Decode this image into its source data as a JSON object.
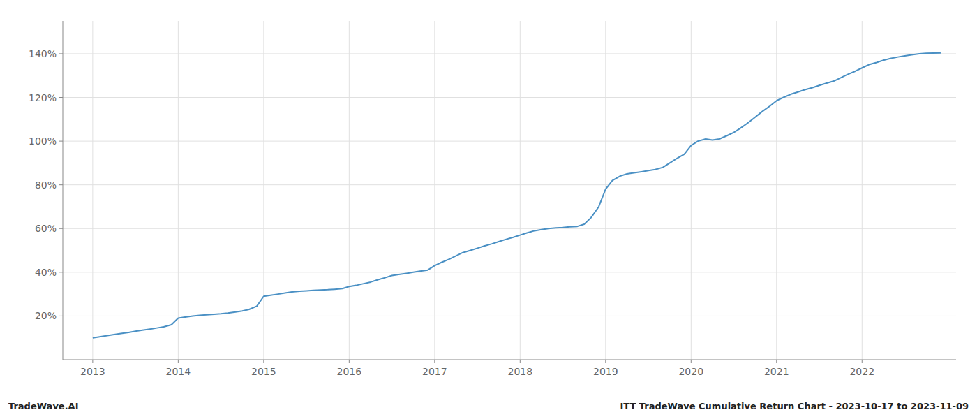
{
  "chart_data": {
    "type": "line",
    "title": "ITT TradeWave Cumulative Return Chart - 2023-10-17 to 2023-11-09",
    "subtitle": "TradeWave.AI",
    "color": "#4a90c4",
    "grid": true,
    "xlim": [
      2012.65,
      2023.1
    ],
    "xticks": [
      2013,
      2014,
      2015,
      2016,
      2017,
      2018,
      2019,
      2020,
      2021,
      2022
    ],
    "ylim": [
      0,
      155
    ],
    "yticks": [
      {
        "value": 20,
        "label": "20%"
      },
      {
        "value": 40,
        "label": "40%"
      },
      {
        "value": 60,
        "label": "60%"
      },
      {
        "value": 80,
        "label": "80%"
      },
      {
        "value": 100,
        "label": "100%"
      },
      {
        "value": 120,
        "label": "120%"
      },
      {
        "value": 140,
        "label": "140%"
      }
    ],
    "x": [
      2013.0,
      2013.08,
      2013.17,
      2013.25,
      2013.33,
      2013.42,
      2013.5,
      2013.58,
      2013.67,
      2013.75,
      2013.83,
      2013.92,
      2014.0,
      2014.08,
      2014.17,
      2014.25,
      2014.33,
      2014.42,
      2014.5,
      2014.58,
      2014.67,
      2014.75,
      2014.83,
      2014.92,
      2015.0,
      2015.08,
      2015.17,
      2015.25,
      2015.33,
      2015.42,
      2015.5,
      2015.58,
      2015.67,
      2015.75,
      2015.83,
      2015.92,
      2016.0,
      2016.08,
      2016.17,
      2016.25,
      2016.33,
      2016.42,
      2016.5,
      2016.58,
      2016.67,
      2016.75,
      2016.83,
      2016.92,
      2017.0,
      2017.08,
      2017.17,
      2017.25,
      2017.33,
      2017.42,
      2017.5,
      2017.58,
      2017.67,
      2017.75,
      2017.83,
      2017.92,
      2018.0,
      2018.08,
      2018.17,
      2018.25,
      2018.33,
      2018.42,
      2018.5,
      2018.58,
      2018.67,
      2018.75,
      2018.83,
      2018.92,
      2019.0,
      2019.08,
      2019.17,
      2019.25,
      2019.33,
      2019.42,
      2019.5,
      2019.58,
      2019.67,
      2019.75,
      2019.83,
      2019.92,
      2020.0,
      2020.08,
      2020.17,
      2020.25,
      2020.33,
      2020.42,
      2020.5,
      2020.58,
      2020.67,
      2020.75,
      2020.83,
      2020.92,
      2021.0,
      2021.08,
      2021.17,
      2021.25,
      2021.33,
      2021.42,
      2021.5,
      2021.58,
      2021.67,
      2021.75,
      2021.83,
      2021.92,
      2022.0,
      2022.08,
      2022.17,
      2022.25,
      2022.33,
      2022.42,
      2022.5,
      2022.58,
      2022.67,
      2022.75,
      2022.83,
      2022.92
    ],
    "values": [
      10.0,
      10.5,
      11.0,
      11.5,
      12.0,
      12.5,
      13.0,
      13.5,
      14.0,
      14.5,
      15.0,
      16.0,
      19.0,
      19.5,
      20.0,
      20.3,
      20.5,
      20.8,
      21.0,
      21.3,
      21.8,
      22.3,
      23.0,
      24.5,
      29.0,
      29.5,
      30.0,
      30.5,
      31.0,
      31.3,
      31.5,
      31.7,
      31.9,
      32.0,
      32.2,
      32.5,
      33.5,
      34.0,
      34.8,
      35.5,
      36.5,
      37.5,
      38.5,
      39.0,
      39.5,
      40.0,
      40.5,
      41.0,
      43.0,
      44.5,
      46.0,
      47.5,
      49.0,
      50.0,
      51.0,
      52.0,
      53.0,
      54.0,
      55.0,
      56.0,
      57.0,
      58.0,
      59.0,
      59.5,
      60.0,
      60.3,
      60.5,
      60.8,
      61.0,
      62.0,
      65.0,
      70.0,
      78.0,
      82.0,
      84.0,
      85.0,
      85.5,
      86.0,
      86.5,
      87.0,
      88.0,
      90.0,
      92.0,
      94.0,
      98.0,
      100.0,
      101.0,
      100.5,
      101.0,
      102.5,
      104.0,
      106.0,
      108.5,
      111.0,
      113.5,
      116.0,
      118.5,
      120.0,
      121.5,
      122.5,
      123.5,
      124.5,
      125.5,
      126.5,
      127.5,
      129.0,
      130.5,
      132.0,
      133.5,
      135.0,
      136.0,
      137.0,
      137.8,
      138.5,
      139.0,
      139.5,
      140.0,
      140.2,
      140.3,
      140.4
    ]
  }
}
